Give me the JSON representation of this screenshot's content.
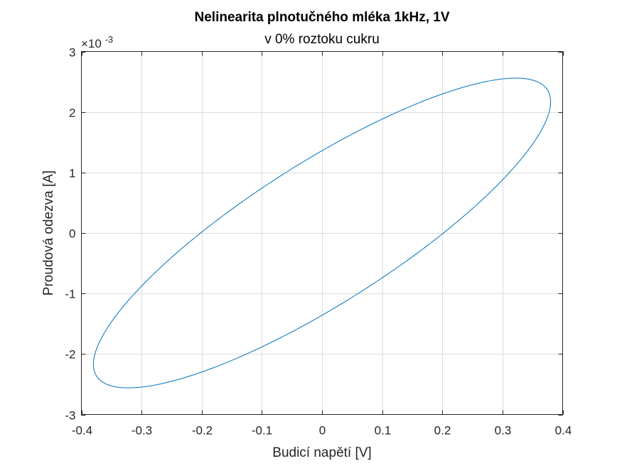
{
  "chart_data": {
    "type": "line",
    "title": "Nelinearita plnotučného mléka 1kHz, 1V",
    "subtitle": "v 0% roztoku cukru",
    "xlabel": "Budicí napětí [V]",
    "ylabel": "Proudová odezva [A]",
    "y_exponent_label": "×10",
    "y_exponent_power": "-3",
    "xlim": [
      -0.4,
      0.4
    ],
    "ylim": [
      -3,
      3
    ],
    "y_scale_factor": 0.001,
    "grid": true,
    "legend": "none",
    "x_ticks": [
      -0.4,
      -0.3,
      -0.2,
      -0.1,
      0,
      0.1,
      0.2,
      0.3,
      0.4
    ],
    "x_tick_labels": [
      "-0.4",
      "-0.3",
      "-0.2",
      "-0.1",
      "0",
      "0.1",
      "0.2",
      "0.3",
      "0.4"
    ],
    "y_ticks": [
      -3,
      -2,
      -1,
      0,
      1,
      2,
      3
    ],
    "y_tick_labels": [
      "-3",
      "-2",
      "-1",
      "0",
      "1",
      "2",
      "3"
    ],
    "series": [
      {
        "color": "#0072BD",
        "shape": "lissajous-ellipse",
        "voltage_amplitude": 0.38,
        "current_amplitude_mA": 2.56,
        "phase_lag_rad": 0.56
      }
    ]
  }
}
